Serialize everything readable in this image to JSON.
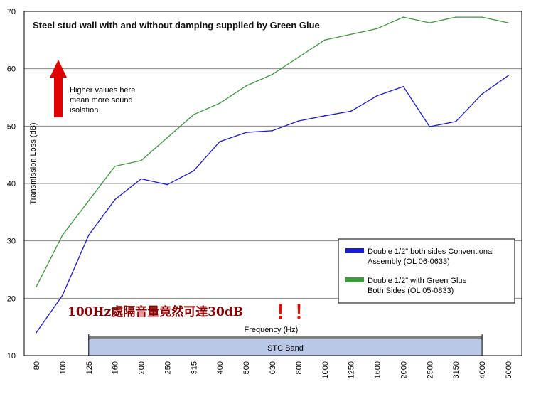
{
  "chart_data": {
    "type": "line",
    "title": "Steel stud wall with and without damping supplied by Green Glue",
    "xlabel": "Frequency (Hz)",
    "ylabel": "Transmission Loss (dB)",
    "ylim": [
      10,
      70
    ],
    "yticks": [
      "10",
      "20",
      "30",
      "40",
      "50",
      "60",
      "70"
    ],
    "categories": [
      "80",
      "100",
      "125",
      "160",
      "200",
      "250",
      "315",
      "400",
      "500",
      "630",
      "800",
      "1000",
      "1250",
      "1600",
      "2000",
      "2500",
      "3150",
      "4000",
      "5000"
    ],
    "grid": "horizontal",
    "legend_position": "right",
    "series": [
      {
        "name_line1": "Double 1/2\" both sides Conventional",
        "name_line2": "Assembly (OL 06-0633)",
        "color": "#1a1adc",
        "values": [
          14,
          20.5,
          31,
          37.2,
          40.8,
          39.8,
          42.2,
          47.3,
          48.9,
          49.2,
          50.9,
          51.8,
          52.6,
          55.3,
          56.9,
          49.9,
          50.8,
          55.6,
          58.8
        ]
      },
      {
        "name_line1": "Double 1/2\" with Green Glue",
        "name_line2": "Both Sides (OL 05-0833)",
        "color": "#3c9a3c",
        "values": [
          22,
          31,
          37,
          43,
          44,
          48,
          52,
          54,
          57,
          59,
          62,
          65,
          66,
          67,
          69,
          68,
          69,
          69,
          68
        ]
      }
    ],
    "annotation_lines": [
      "Higher values here",
      "mean more sound",
      "isolation"
    ],
    "band": {
      "label": "STC Band",
      "from": "125",
      "to": "4000"
    }
  },
  "overlay_note": {
    "text": "100Hz處隔音量竟然可達30dB",
    "marks": "！！"
  },
  "colors": {
    "arrow": "#e00000",
    "band_fill": "#b9c8e6",
    "grid": "#8a8a8a",
    "overlay_text": "#8b0000",
    "overlay_mark": "#ff0000"
  }
}
